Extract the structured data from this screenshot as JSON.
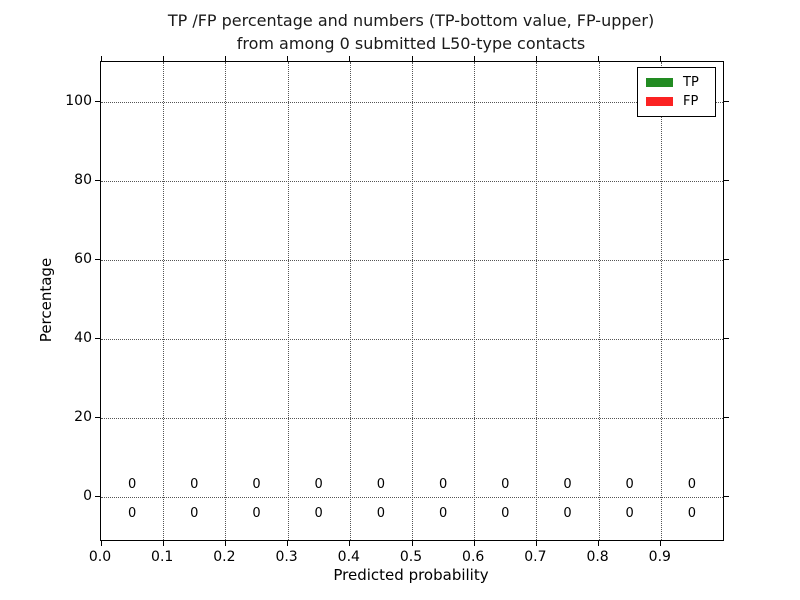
{
  "chart_data": {
    "type": "bar",
    "title": "TP /FP percentage and numbers (TP-bottom value, FP-upper) from among 0 submitted L50-type contacts",
    "title_lines": [
      "TP /FP percentage and numbers (TP-bottom value, FP-upper)",
      "from among 0 submitted L50-type contacts"
    ],
    "xlabel": "Predicted probability",
    "ylabel": "Percentage",
    "xlim": [
      0.0,
      1.0
    ],
    "ylim": [
      -11,
      110
    ],
    "grid": true,
    "grid_style": "dotted",
    "x_ticks": [
      0.0,
      0.1,
      0.2,
      0.3,
      0.4,
      0.5,
      0.6,
      0.7,
      0.8,
      0.9
    ],
    "x_tick_labels": [
      "0.0",
      "0.1",
      "0.2",
      "0.3",
      "0.4",
      "0.5",
      "0.6",
      "0.7",
      "0.8",
      "0.9"
    ],
    "y_ticks": [
      0,
      20,
      40,
      60,
      80,
      100
    ],
    "y_tick_labels": [
      "0",
      "20",
      "40",
      "60",
      "80",
      "100"
    ],
    "categories": [
      0.05,
      0.15,
      0.25,
      0.35,
      0.45,
      0.55,
      0.65,
      0.75,
      0.85,
      0.95
    ],
    "series": [
      {
        "name": "TP",
        "color": "#228b22",
        "values": [
          0,
          0,
          0,
          0,
          0,
          0,
          0,
          0,
          0,
          0
        ]
      },
      {
        "name": "FP",
        "color": "#fb2222",
        "values": [
          0,
          0,
          0,
          0,
          0,
          0,
          0,
          0,
          0,
          0
        ]
      }
    ],
    "annotations": {
      "upper_fp_counts": [
        "0",
        "0",
        "0",
        "0",
        "0",
        "0",
        "0",
        "0",
        "0",
        "0"
      ],
      "lower_tp_counts": [
        "0",
        "0",
        "0",
        "0",
        "0",
        "0",
        "0",
        "0",
        "0",
        "0"
      ],
      "upper_row_y": 3.0,
      "lower_row_y": -4.5
    },
    "legend": {
      "position": "upper right",
      "entries": [
        {
          "label": "TP",
          "color": "#228b22"
        },
        {
          "label": "FP",
          "color": "#fb2222"
        }
      ]
    }
  }
}
